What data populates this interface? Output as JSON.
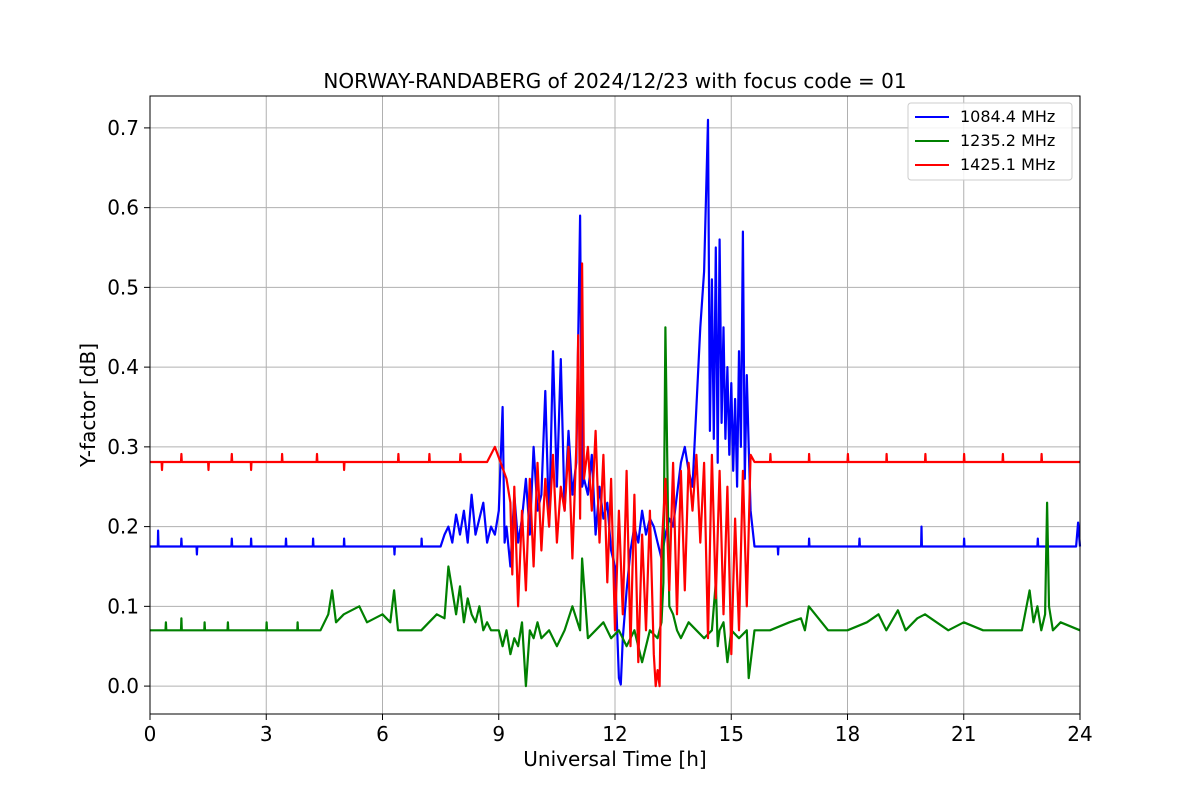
{
  "chart_data": {
    "type": "line",
    "title": "NORWAY-RANDABERG of 2024/12/23 with focus code = 01",
    "xlabel": "Universal Time [h]",
    "ylabel": "Y-factor [dB]",
    "xlim": [
      0,
      24
    ],
    "ylim": [
      -0.035,
      0.74
    ],
    "xticks": [
      0,
      3,
      6,
      9,
      12,
      15,
      18,
      21,
      24
    ],
    "yticks": [
      0.0,
      0.1,
      0.2,
      0.3,
      0.4,
      0.5,
      0.6,
      0.7
    ],
    "ytick_labels": [
      "0.0",
      "0.1",
      "0.2",
      "0.3",
      "0.4",
      "0.5",
      "0.6",
      "0.7"
    ],
    "grid": true,
    "legend_position": "top-right",
    "series": [
      {
        "name": "1084.4 MHz",
        "color": "#0000ff",
        "x": [
          0,
          0.2,
          0.21,
          0.22,
          0.8,
          0.81,
          0.82,
          1.2,
          1.21,
          1.22,
          2.1,
          2.11,
          2.12,
          2.6,
          2.61,
          2.62,
          3.5,
          3.51,
          3.52,
          4.2,
          4.21,
          4.22,
          5.0,
          5.01,
          5.02,
          6.3,
          6.31,
          6.32,
          7.0,
          7.01,
          7.02,
          7.5,
          7.6,
          7.7,
          7.8,
          7.9,
          8.0,
          8.1,
          8.2,
          8.3,
          8.4,
          8.5,
          8.6,
          8.7,
          8.8,
          8.9,
          9.0,
          9.1,
          9.15,
          9.2,
          9.3,
          9.4,
          9.5,
          9.6,
          9.7,
          9.8,
          9.9,
          10.0,
          10.1,
          10.2,
          10.3,
          10.4,
          10.5,
          10.6,
          10.7,
          10.8,
          10.9,
          11.0,
          11.1,
          11.15,
          11.2,
          11.3,
          11.4,
          11.5,
          11.6,
          11.7,
          11.8,
          11.9,
          12.0,
          12.05,
          12.1,
          12.15,
          12.2,
          12.3,
          12.4,
          12.5,
          12.6,
          12.7,
          12.8,
          12.9,
          13.0,
          13.1,
          13.2,
          13.3,
          13.4,
          13.5,
          13.6,
          13.7,
          13.8,
          13.9,
          14.0,
          14.1,
          14.2,
          14.3,
          14.4,
          14.45,
          14.5,
          14.55,
          14.6,
          14.65,
          14.7,
          14.75,
          14.8,
          14.85,
          14.9,
          14.95,
          15.0,
          15.05,
          15.1,
          15.15,
          15.2,
          15.25,
          15.3,
          15.35,
          15.4,
          15.45,
          15.5,
          15.6,
          16.2,
          16.21,
          16.22,
          17.0,
          17.01,
          17.02,
          18.3,
          18.31,
          18.32,
          19.9,
          19.91,
          19.92,
          21.0,
          21.01,
          21.02,
          22.9,
          22.91,
          22.92,
          23.9,
          23.95,
          24.0
        ],
        "y": [
          0.175,
          0.175,
          0.195,
          0.175,
          0.175,
          0.185,
          0.175,
          0.175,
          0.165,
          0.175,
          0.175,
          0.185,
          0.175,
          0.175,
          0.185,
          0.175,
          0.175,
          0.185,
          0.175,
          0.175,
          0.185,
          0.175,
          0.175,
          0.185,
          0.175,
          0.175,
          0.165,
          0.175,
          0.175,
          0.185,
          0.175,
          0.175,
          0.19,
          0.2,
          0.18,
          0.215,
          0.19,
          0.22,
          0.18,
          0.24,
          0.19,
          0.21,
          0.23,
          0.18,
          0.2,
          0.19,
          0.22,
          0.35,
          0.18,
          0.2,
          0.15,
          0.24,
          0.18,
          0.21,
          0.26,
          0.19,
          0.3,
          0.22,
          0.24,
          0.37,
          0.2,
          0.42,
          0.25,
          0.41,
          0.22,
          0.32,
          0.24,
          0.28,
          0.59,
          0.25,
          0.26,
          0.24,
          0.29,
          0.19,
          0.25,
          0.21,
          0.23,
          0.17,
          0.15,
          0.08,
          0.01,
          0.002,
          0.06,
          0.12,
          0.17,
          0.2,
          0.18,
          0.22,
          0.19,
          0.21,
          0.2,
          0.18,
          0.16,
          0.19,
          0.21,
          0.2,
          0.24,
          0.28,
          0.3,
          0.27,
          0.25,
          0.35,
          0.45,
          0.52,
          0.71,
          0.32,
          0.51,
          0.31,
          0.55,
          0.28,
          0.56,
          0.33,
          0.45,
          0.31,
          0.4,
          0.29,
          0.38,
          0.27,
          0.36,
          0.25,
          0.42,
          0.3,
          0.57,
          0.26,
          0.39,
          0.3,
          0.22,
          0.175,
          0.175,
          0.165,
          0.175,
          0.175,
          0.185,
          0.175,
          0.175,
          0.185,
          0.175,
          0.175,
          0.2,
          0.175,
          0.175,
          0.185,
          0.175,
          0.175,
          0.185,
          0.175,
          0.175,
          0.205,
          0.175
        ]
      },
      {
        "name": "1235.2 MHz",
        "color": "#008000",
        "x": [
          0,
          0.4,
          0.41,
          0.42,
          0.8,
          0.81,
          0.82,
          1.4,
          1.41,
          1.42,
          2.0,
          2.01,
          2.02,
          3.0,
          3.01,
          3.02,
          3.8,
          3.81,
          3.82,
          4.4,
          4.6,
          4.7,
          4.8,
          5.0,
          5.4,
          5.6,
          6.0,
          6.2,
          6.3,
          6.4,
          7.0,
          7.2,
          7.4,
          7.6,
          7.7,
          7.8,
          7.9,
          8.0,
          8.1,
          8.2,
          8.3,
          8.4,
          8.5,
          8.6,
          8.7,
          8.8,
          8.9,
          9.0,
          9.1,
          9.2,
          9.3,
          9.4,
          9.5,
          9.6,
          9.7,
          9.8,
          9.9,
          10.0,
          10.1,
          10.3,
          10.5,
          10.7,
          10.9,
          11.1,
          11.15,
          11.3,
          11.5,
          11.7,
          11.9,
          12.1,
          12.3,
          12.5,
          12.7,
          12.9,
          13.1,
          13.2,
          13.25,
          13.3,
          13.4,
          13.5,
          13.6,
          13.7,
          13.9,
          14.1,
          14.3,
          14.5,
          14.6,
          14.65,
          14.7,
          14.8,
          14.9,
          15.0,
          15.2,
          15.4,
          15.45,
          15.6,
          16.0,
          16.5,
          16.8,
          16.9,
          17.0,
          17.5,
          18.0,
          18.5,
          18.8,
          19.0,
          19.3,
          19.5,
          19.8,
          20.0,
          20.3,
          20.6,
          21.0,
          21.5,
          22.0,
          22.5,
          22.7,
          22.8,
          22.9,
          23.0,
          23.1,
          23.15,
          23.2,
          23.3,
          23.5,
          24.0
        ],
        "y": [
          0.07,
          0.07,
          0.08,
          0.07,
          0.07,
          0.085,
          0.07,
          0.07,
          0.08,
          0.07,
          0.07,
          0.08,
          0.07,
          0.07,
          0.08,
          0.07,
          0.07,
          0.08,
          0.07,
          0.07,
          0.09,
          0.12,
          0.08,
          0.09,
          0.1,
          0.08,
          0.09,
          0.08,
          0.12,
          0.07,
          0.07,
          0.08,
          0.09,
          0.085,
          0.15,
          0.12,
          0.09,
          0.125,
          0.08,
          0.11,
          0.09,
          0.08,
          0.1,
          0.07,
          0.08,
          0.07,
          0.07,
          0.07,
          0.05,
          0.07,
          0.04,
          0.06,
          0.05,
          0.08,
          0.0,
          0.07,
          0.06,
          0.08,
          0.06,
          0.07,
          0.05,
          0.07,
          0.1,
          0.07,
          0.16,
          0.06,
          0.07,
          0.08,
          0.06,
          0.07,
          0.05,
          0.07,
          0.03,
          0.07,
          0.06,
          0.08,
          0.13,
          0.45,
          0.1,
          0.09,
          0.07,
          0.06,
          0.08,
          0.07,
          0.06,
          0.07,
          0.13,
          0.05,
          0.07,
          0.08,
          0.03,
          0.07,
          0.06,
          0.07,
          0.01,
          0.07,
          0.07,
          0.08,
          0.085,
          0.07,
          0.1,
          0.07,
          0.07,
          0.08,
          0.09,
          0.07,
          0.095,
          0.07,
          0.085,
          0.09,
          0.08,
          0.07,
          0.08,
          0.07,
          0.07,
          0.07,
          0.12,
          0.08,
          0.1,
          0.07,
          0.09,
          0.23,
          0.1,
          0.07,
          0.08,
          0.07
        ]
      },
      {
        "name": "1425.1 MHz",
        "color": "#ff0000",
        "x": [
          0,
          0.3,
          0.31,
          0.32,
          0.8,
          0.81,
          0.82,
          1.5,
          1.51,
          1.52,
          2.1,
          2.11,
          2.12,
          2.6,
          2.61,
          2.62,
          3.4,
          3.41,
          3.42,
          4.3,
          4.31,
          4.32,
          5.0,
          5.01,
          5.02,
          6.4,
          6.41,
          6.42,
          7.2,
          7.21,
          7.22,
          8.0,
          8.01,
          8.02,
          8.7,
          8.9,
          9.2,
          9.3,
          9.35,
          9.4,
          9.5,
          9.6,
          9.7,
          9.8,
          9.9,
          10.0,
          10.1,
          10.2,
          10.3,
          10.4,
          10.5,
          10.6,
          10.7,
          10.8,
          10.9,
          11.0,
          11.05,
          11.1,
          11.15,
          11.2,
          11.3,
          11.4,
          11.5,
          11.6,
          11.7,
          11.8,
          11.9,
          12.0,
          12.1,
          12.2,
          12.3,
          12.4,
          12.5,
          12.6,
          12.7,
          12.8,
          12.9,
          13.0,
          13.05,
          13.1,
          13.15,
          13.2,
          13.3,
          13.4,
          13.5,
          13.6,
          13.7,
          13.8,
          13.9,
          14.0,
          14.1,
          14.2,
          14.3,
          14.4,
          14.5,
          14.6,
          14.7,
          14.8,
          14.9,
          15.0,
          15.1,
          15.2,
          15.3,
          15.4,
          15.5,
          15.6,
          16.0,
          16.01,
          16.02,
          17.0,
          17.01,
          17.02,
          18.0,
          18.01,
          18.02,
          19.0,
          19.01,
          19.02,
          20.0,
          20.01,
          20.02,
          21.0,
          21.01,
          21.02,
          22.0,
          22.01,
          22.02,
          23.0,
          23.01,
          23.02,
          24.0
        ],
        "y": [
          0.281,
          0.281,
          0.271,
          0.281,
          0.281,
          0.291,
          0.281,
          0.281,
          0.271,
          0.281,
          0.281,
          0.291,
          0.281,
          0.281,
          0.271,
          0.281,
          0.281,
          0.291,
          0.281,
          0.281,
          0.291,
          0.281,
          0.281,
          0.271,
          0.281,
          0.281,
          0.291,
          0.281,
          0.281,
          0.291,
          0.281,
          0.281,
          0.291,
          0.281,
          0.281,
          0.3,
          0.26,
          0.23,
          0.14,
          0.25,
          0.1,
          0.22,
          0.12,
          0.26,
          0.15,
          0.28,
          0.17,
          0.26,
          0.2,
          0.29,
          0.18,
          0.25,
          0.22,
          0.3,
          0.16,
          0.3,
          0.44,
          0.21,
          0.53,
          0.26,
          0.3,
          0.22,
          0.32,
          0.18,
          0.29,
          0.13,
          0.26,
          0.07,
          0.22,
          0.09,
          0.27,
          0.05,
          0.24,
          0.03,
          0.19,
          0.07,
          0.22,
          0.04,
          0.0,
          0.02,
          0.0,
          0.17,
          0.26,
          0.12,
          0.28,
          0.09,
          0.27,
          0.12,
          0.28,
          0.22,
          0.29,
          0.18,
          0.28,
          0.06,
          0.29,
          0.11,
          0.27,
          0.09,
          0.25,
          0.04,
          0.21,
          0.07,
          0.27,
          0.1,
          0.29,
          0.281,
          0.281,
          0.291,
          0.281,
          0.281,
          0.291,
          0.281,
          0.281,
          0.291,
          0.281,
          0.281,
          0.291,
          0.281,
          0.281,
          0.291,
          0.281,
          0.281,
          0.291,
          0.281,
          0.281,
          0.291,
          0.281,
          0.281,
          0.291,
          0.281,
          0.281
        ]
      }
    ]
  }
}
